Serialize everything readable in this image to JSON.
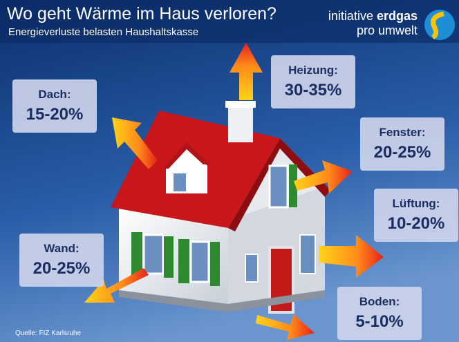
{
  "header": {
    "title": "Wo geht Wärme im Haus verloren?",
    "subtitle": "Energieverluste belasten Haushaltskasse"
  },
  "logo": {
    "line1_a": "initiative",
    "line1_b": "erdgas",
    "line2": "pro umwelt"
  },
  "boxes": [
    {
      "label": "Dach:",
      "value": "15-20%"
    },
    {
      "label": "Heizung:",
      "value": "30-35%"
    },
    {
      "label": "Fenster:",
      "value": "20-25%"
    },
    {
      "label": "Lüftung:",
      "value": "10-20%"
    },
    {
      "label": "Wand:",
      "value": "20-25%"
    },
    {
      "label": "Boden:",
      "value": "5-10%"
    }
  ],
  "source": "Quelle: FIZ Karlsruhe"
}
